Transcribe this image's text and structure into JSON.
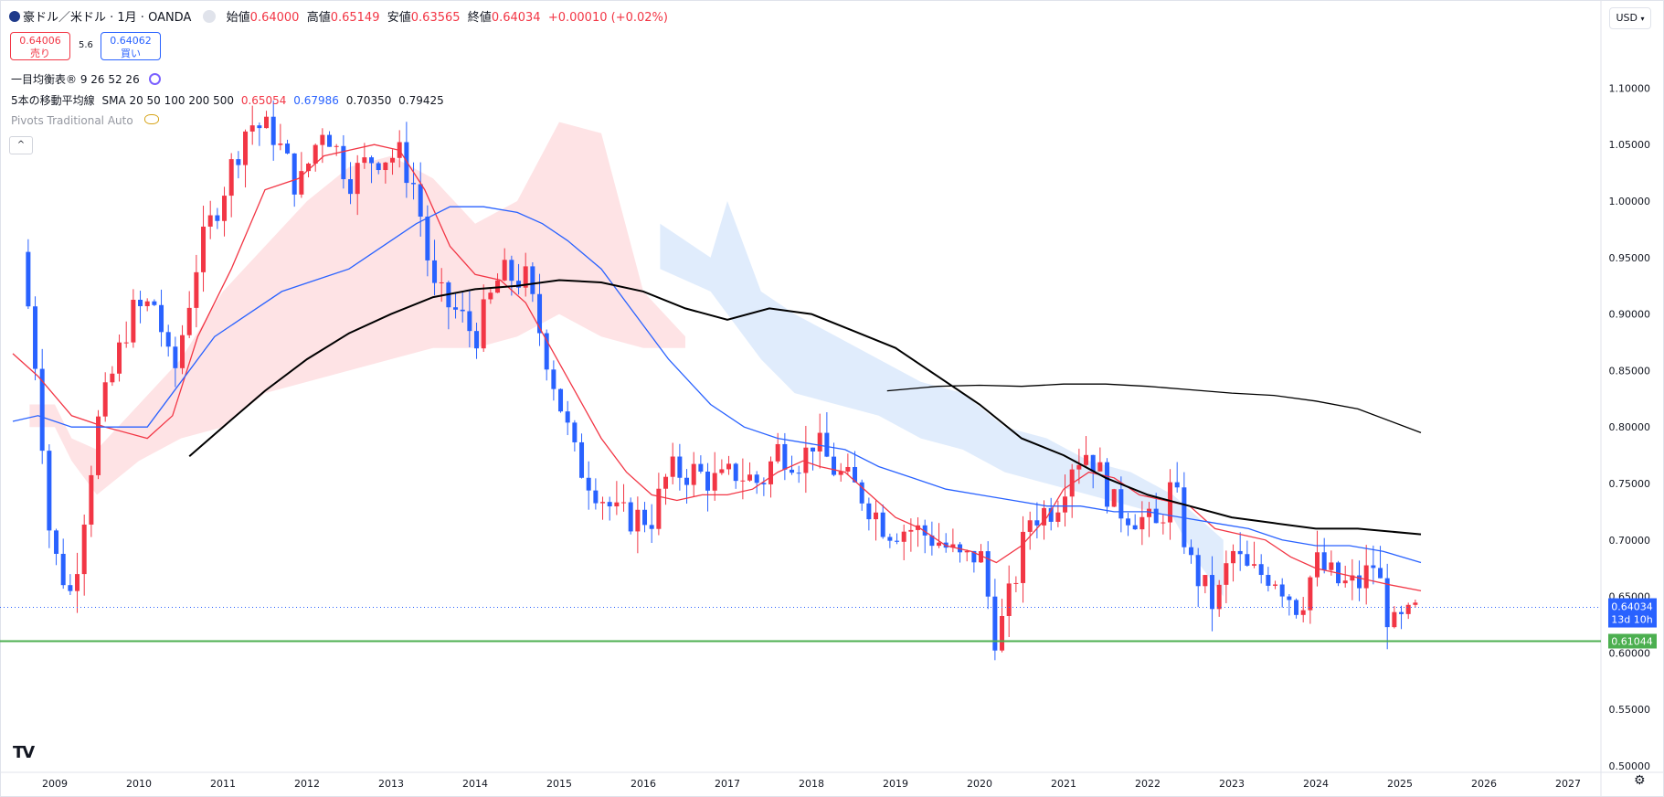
{
  "header": {
    "symbol": "豪ドル／米ドル · 1月 · OANDA",
    "open_label": "始値",
    "open": "0.64000",
    "high_label": "高値",
    "high": "0.65149",
    "low_label": "安値",
    "low": "0.63565",
    "close_label": "終値",
    "close": "0.64034",
    "change": "+0.00010 (+0.02%)"
  },
  "trade": {
    "sell_price": "0.64006",
    "sell_label": "売り",
    "spread": "5.6",
    "buy_price": "0.64062",
    "buy_label": "買い"
  },
  "indicators": {
    "ichimoku": "一目均衡表® 9 26 52 26",
    "sma_name": "5本の移動平均線",
    "sma_params": "SMA 20 50 100 200 500",
    "sma_v1": "0.65054",
    "sma_v2": "0.67986",
    "sma_v3": "0.70350",
    "sma_v4": "0.79425",
    "pivots": "Pivots Traditional Auto"
  },
  "currency_button": "USD",
  "collapse_icon": "chevron-up-icon",
  "settings_icon": "gear-icon",
  "colors": {
    "up": "#f23645",
    "down": "#2962ff",
    "sma20": "#f23645",
    "sma50": "#2962ff",
    "sma100": "#000000",
    "sma200": "#000000",
    "support": "#4caf50",
    "cloud_bull": "#fdd9dc",
    "cloud_bear": "#d6e6fb"
  },
  "chart_data": {
    "type": "candlestick",
    "title": "豪ドル／米ドル · 1月 · OANDA",
    "xlabel": "",
    "ylabel": "",
    "ylim": [
      0.5,
      1.15
    ],
    "y_ticks": [
      "0.50000",
      "0.55000",
      "0.60000",
      "0.65000",
      "0.70000",
      "0.75000",
      "0.80000",
      "0.85000",
      "0.90000",
      "0.95000",
      "1.00000",
      "1.05000",
      "1.10000"
    ],
    "x_ticks": [
      "2009",
      "2010",
      "2011",
      "2012",
      "2013",
      "2014",
      "2015",
      "2016",
      "2017",
      "2018",
      "2019",
      "2020",
      "2021",
      "2022",
      "2023",
      "2024",
      "2025",
      "2026",
      "2027"
    ],
    "anchors": [
      [
        2008.6,
        0.955
      ],
      [
        2008.8,
        0.84
      ],
      [
        2008.95,
        0.695
      ],
      [
        2009.2,
        0.65
      ],
      [
        2009.5,
        0.8
      ],
      [
        2009.9,
        0.9
      ],
      [
        2010.2,
        0.91
      ],
      [
        2010.4,
        0.84
      ],
      [
        2010.7,
        0.95
      ],
      [
        2011.0,
        1.01
      ],
      [
        2011.3,
        1.07
      ],
      [
        2011.6,
        1.06
      ],
      [
        2011.9,
        1.01
      ],
      [
        2012.2,
        1.07
      ],
      [
        2012.5,
        1.02
      ],
      [
        2012.8,
        1.04
      ],
      [
        2013.1,
        1.04
      ],
      [
        2013.3,
        1.01
      ],
      [
        2013.5,
        0.92
      ],
      [
        2013.8,
        0.9
      ],
      [
        2014.0,
        0.88
      ],
      [
        2014.3,
        0.935
      ],
      [
        2014.6,
        0.93
      ],
      [
        2014.9,
        0.85
      ],
      [
        2015.2,
        0.77
      ],
      [
        2015.5,
        0.74
      ],
      [
        2015.7,
        0.72
      ],
      [
        2015.9,
        0.72
      ],
      [
        2016.1,
        0.72
      ],
      [
        2016.3,
        0.76
      ],
      [
        2016.6,
        0.76
      ],
      [
        2016.9,
        0.75
      ],
      [
        2017.1,
        0.76
      ],
      [
        2017.4,
        0.75
      ],
      [
        2017.6,
        0.78
      ],
      [
        2017.9,
        0.77
      ],
      [
        2018.0,
        0.79
      ],
      [
        2018.3,
        0.76
      ],
      [
        2018.6,
        0.74
      ],
      [
        2018.9,
        0.71
      ],
      [
        2019.2,
        0.71
      ],
      [
        2019.5,
        0.7
      ],
      [
        2019.8,
        0.68
      ],
      [
        2020.0,
        0.69
      ],
      [
        2020.2,
        0.61
      ],
      [
        2020.4,
        0.66
      ],
      [
        2020.6,
        0.72
      ],
      [
        2020.9,
        0.73
      ],
      [
        2021.1,
        0.77
      ],
      [
        2021.3,
        0.78
      ],
      [
        2021.6,
        0.73
      ],
      [
        2021.9,
        0.72
      ],
      [
        2022.1,
        0.71
      ],
      [
        2022.3,
        0.75
      ],
      [
        2022.5,
        0.68
      ],
      [
        2022.8,
        0.64
      ],
      [
        2023.0,
        0.69
      ],
      [
        2023.2,
        0.67
      ],
      [
        2023.5,
        0.67
      ],
      [
        2023.8,
        0.64
      ],
      [
        2024.0,
        0.68
      ],
      [
        2024.3,
        0.66
      ],
      [
        2024.5,
        0.66
      ],
      [
        2024.7,
        0.68
      ],
      [
        2024.9,
        0.62
      ],
      [
        2025.1,
        0.63
      ],
      [
        2025.25,
        0.64
      ]
    ],
    "series": [
      {
        "name": "SMA 20",
        "color": "#f23645",
        "points": [
          [
            2008.5,
            0.865
          ],
          [
            2008.8,
            0.845
          ],
          [
            2009.2,
            0.81
          ],
          [
            2009.6,
            0.8
          ],
          [
            2010.1,
            0.79
          ],
          [
            2010.4,
            0.81
          ],
          [
            2010.7,
            0.88
          ],
          [
            2011.1,
            0.94
          ],
          [
            2011.5,
            1.01
          ],
          [
            2011.9,
            1.02
          ],
          [
            2012.2,
            1.04
          ],
          [
            2012.5,
            1.045
          ],
          [
            2012.8,
            1.05
          ],
          [
            2013.1,
            1.045
          ],
          [
            2013.4,
            1.01
          ],
          [
            2013.7,
            0.96
          ],
          [
            2014.0,
            0.935
          ],
          [
            2014.3,
            0.93
          ],
          [
            2014.6,
            0.91
          ],
          [
            2014.9,
            0.87
          ],
          [
            2015.2,
            0.83
          ],
          [
            2015.5,
            0.79
          ],
          [
            2015.8,
            0.76
          ],
          [
            2016.1,
            0.74
          ],
          [
            2016.4,
            0.735
          ],
          [
            2016.7,
            0.74
          ],
          [
            2017.0,
            0.74
          ],
          [
            2017.3,
            0.745
          ],
          [
            2017.6,
            0.76
          ],
          [
            2017.9,
            0.77
          ],
          [
            2018.1,
            0.765
          ],
          [
            2018.4,
            0.76
          ],
          [
            2018.7,
            0.74
          ],
          [
            2019.0,
            0.72
          ],
          [
            2019.3,
            0.71
          ],
          [
            2019.6,
            0.695
          ],
          [
            2019.9,
            0.69
          ],
          [
            2020.2,
            0.68
          ],
          [
            2020.5,
            0.695
          ],
          [
            2020.8,
            0.72
          ],
          [
            2021.0,
            0.745
          ],
          [
            2021.3,
            0.76
          ],
          [
            2021.6,
            0.755
          ],
          [
            2021.9,
            0.74
          ],
          [
            2022.2,
            0.735
          ],
          [
            2022.5,
            0.73
          ],
          [
            2022.8,
            0.71
          ],
          [
            2023.1,
            0.705
          ],
          [
            2023.4,
            0.7
          ],
          [
            2023.7,
            0.685
          ],
          [
            2024.0,
            0.675
          ],
          [
            2024.3,
            0.67
          ],
          [
            2024.6,
            0.665
          ],
          [
            2024.9,
            0.66
          ],
          [
            2025.25,
            0.655
          ]
        ]
      },
      {
        "name": "SMA 50",
        "color": "#2962ff",
        "points": [
          [
            2008.5,
            0.805
          ],
          [
            2008.8,
            0.81
          ],
          [
            2009.2,
            0.8
          ],
          [
            2009.6,
            0.8
          ],
          [
            2010.1,
            0.8
          ],
          [
            2010.5,
            0.84
          ],
          [
            2010.9,
            0.88
          ],
          [
            2011.3,
            0.9
          ],
          [
            2011.7,
            0.92
          ],
          [
            2012.1,
            0.93
          ],
          [
            2012.5,
            0.94
          ],
          [
            2012.9,
            0.96
          ],
          [
            2013.3,
            0.98
          ],
          [
            2013.7,
            0.995
          ],
          [
            2014.1,
            0.995
          ],
          [
            2014.5,
            0.99
          ],
          [
            2014.8,
            0.98
          ],
          [
            2015.1,
            0.965
          ],
          [
            2015.5,
            0.94
          ],
          [
            2015.9,
            0.9
          ],
          [
            2016.3,
            0.86
          ],
          [
            2016.8,
            0.82
          ],
          [
            2017.2,
            0.8
          ],
          [
            2017.6,
            0.79
          ],
          [
            2018.0,
            0.785
          ],
          [
            2018.4,
            0.78
          ],
          [
            2018.8,
            0.765
          ],
          [
            2019.2,
            0.755
          ],
          [
            2019.6,
            0.745
          ],
          [
            2020.0,
            0.74
          ],
          [
            2020.4,
            0.735
          ],
          [
            2020.8,
            0.73
          ],
          [
            2021.2,
            0.73
          ],
          [
            2021.6,
            0.725
          ],
          [
            2022.0,
            0.725
          ],
          [
            2022.4,
            0.72
          ],
          [
            2022.8,
            0.715
          ],
          [
            2023.2,
            0.71
          ],
          [
            2023.6,
            0.7
          ],
          [
            2024.0,
            0.695
          ],
          [
            2024.4,
            0.695
          ],
          [
            2024.8,
            0.69
          ],
          [
            2025.25,
            0.68
          ]
        ]
      },
      {
        "name": "SMA 100",
        "color": "#000000",
        "points": [
          [
            2010.6,
            0.774
          ],
          [
            2011.0,
            0.8
          ],
          [
            2011.5,
            0.832
          ],
          [
            2012.0,
            0.86
          ],
          [
            2012.5,
            0.883
          ],
          [
            2013.0,
            0.9
          ],
          [
            2013.5,
            0.915
          ],
          [
            2014.0,
            0.922
          ],
          [
            2014.5,
            0.925
          ],
          [
            2015.0,
            0.93
          ],
          [
            2015.5,
            0.928
          ],
          [
            2016.0,
            0.92
          ],
          [
            2016.5,
            0.905
          ],
          [
            2017.0,
            0.895
          ],
          [
            2017.5,
            0.905
          ],
          [
            2018.0,
            0.9
          ],
          [
            2018.5,
            0.885
          ],
          [
            2019.0,
            0.87
          ],
          [
            2019.5,
            0.845
          ],
          [
            2020.0,
            0.82
          ],
          [
            2020.5,
            0.79
          ],
          [
            2021.0,
            0.775
          ],
          [
            2021.5,
            0.755
          ],
          [
            2022.0,
            0.74
          ],
          [
            2022.5,
            0.73
          ],
          [
            2023.0,
            0.72
          ],
          [
            2023.5,
            0.715
          ],
          [
            2024.0,
            0.71
          ],
          [
            2024.5,
            0.71
          ],
          [
            2025.25,
            0.705
          ]
        ]
      },
      {
        "name": "SMA 200",
        "color": "#000000",
        "points": [
          [
            2018.9,
            0.832
          ],
          [
            2019.5,
            0.836
          ],
          [
            2020.0,
            0.837
          ],
          [
            2020.5,
            0.836
          ],
          [
            2021.0,
            0.838
          ],
          [
            2021.5,
            0.838
          ],
          [
            2022.0,
            0.836
          ],
          [
            2022.5,
            0.833
          ],
          [
            2023.0,
            0.83
          ],
          [
            2023.5,
            0.828
          ],
          [
            2024.0,
            0.823
          ],
          [
            2024.5,
            0.816
          ],
          [
            2025.25,
            0.795
          ]
        ]
      }
    ],
    "support_level": 0.61044,
    "support_label": "0.61044",
    "last_price": 0.64034,
    "last_price_label": "0.64034",
    "countdown": "13d 10h",
    "cloud_bull": [
      [
        2008.7,
        0.82
      ],
      [
        2009.0,
        0.82
      ],
      [
        2009.2,
        0.79
      ],
      [
        2009.5,
        0.78
      ],
      [
        2010.0,
        0.82
      ],
      [
        2010.5,
        0.86
      ],
      [
        2011.0,
        0.92
      ],
      [
        2011.5,
        0.96
      ],
      [
        2012.0,
        1.0
      ],
      [
        2012.5,
        1.03
      ],
      [
        2013.0,
        1.04
      ],
      [
        2013.5,
        1.02
      ],
      [
        2014.0,
        0.98
      ],
      [
        2014.5,
        1.0
      ],
      [
        2015.0,
        1.07
      ],
      [
        2015.5,
        1.06
      ],
      [
        2016.0,
        0.92
      ],
      [
        2016.5,
        0.88
      ],
      [
        2016.5,
        0.87
      ],
      [
        2016.0,
        0.87
      ],
      [
        2015.5,
        0.88
      ],
      [
        2015.0,
        0.9
      ],
      [
        2014.5,
        0.88
      ],
      [
        2014.0,
        0.87
      ],
      [
        2013.5,
        0.87
      ],
      [
        2013.0,
        0.86
      ],
      [
        2012.5,
        0.85
      ],
      [
        2012.0,
        0.84
      ],
      [
        2011.5,
        0.83
      ],
      [
        2011.0,
        0.8
      ],
      [
        2010.5,
        0.79
      ],
      [
        2010.0,
        0.77
      ],
      [
        2009.5,
        0.74
      ],
      [
        2009.2,
        0.77
      ],
      [
        2009.0,
        0.8
      ],
      [
        2008.7,
        0.8
      ]
    ],
    "cloud_bear": [
      [
        2016.2,
        0.98
      ],
      [
        2016.8,
        0.95
      ],
      [
        2017.0,
        1.0
      ],
      [
        2017.4,
        0.92
      ],
      [
        2017.8,
        0.9
      ],
      [
        2018.3,
        0.88
      ],
      [
        2018.8,
        0.86
      ],
      [
        2019.3,
        0.84
      ],
      [
        2019.8,
        0.83
      ],
      [
        2020.3,
        0.8
      ],
      [
        2020.8,
        0.79
      ],
      [
        2021.3,
        0.77
      ],
      [
        2021.8,
        0.76
      ],
      [
        2022.3,
        0.74
      ],
      [
        2022.6,
        0.72
      ],
      [
        2022.9,
        0.7
      ],
      [
        2022.9,
        0.65
      ],
      [
        2022.6,
        0.68
      ],
      [
        2022.3,
        0.72
      ],
      [
        2021.8,
        0.73
      ],
      [
        2021.3,
        0.74
      ],
      [
        2020.8,
        0.75
      ],
      [
        2020.3,
        0.76
      ],
      [
        2019.8,
        0.78
      ],
      [
        2019.3,
        0.79
      ],
      [
        2018.8,
        0.81
      ],
      [
        2018.3,
        0.82
      ],
      [
        2017.8,
        0.83
      ],
      [
        2017.4,
        0.86
      ],
      [
        2017.0,
        0.9
      ],
      [
        2016.8,
        0.92
      ],
      [
        2016.2,
        0.94
      ]
    ]
  }
}
